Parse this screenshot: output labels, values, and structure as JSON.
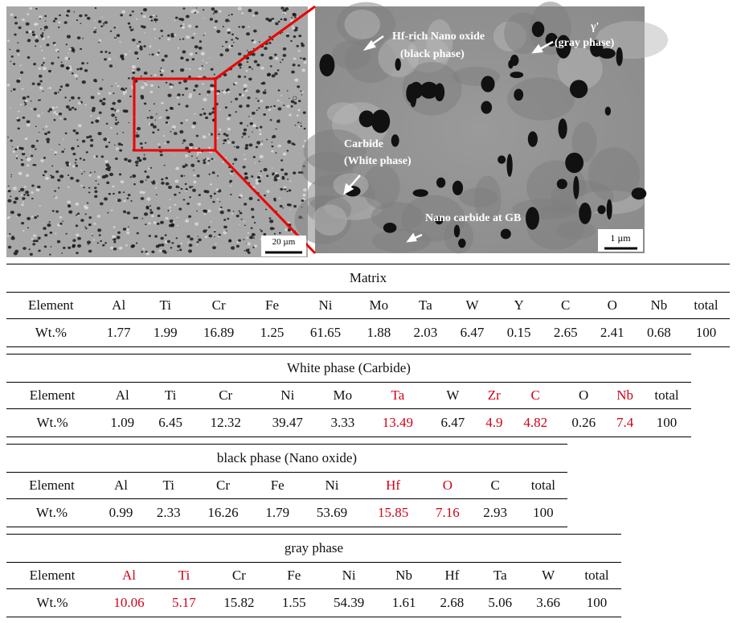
{
  "figure": {
    "left_scale": "20 µm",
    "right_scale": "1 µm",
    "labels": [
      "Hf-rich Nano oxide",
      "(black phase)",
      "γ'",
      "(gray phase)",
      "Carbide",
      "(White phase)",
      "Nano carbide at GB"
    ]
  },
  "highlight_color": "#d0021b",
  "tables": [
    {
      "title": "Matrix",
      "header": [
        "Element",
        "Al",
        "Ti",
        "Cr",
        "Fe",
        "Ni",
        "Mo",
        "Ta",
        "W",
        "Y",
        "C",
        "O",
        "Nb",
        "total"
      ],
      "values": [
        "Wt.%",
        "1.77",
        "1.99",
        "16.89",
        "1.25",
        "61.65",
        "1.88",
        "2.03",
        "6.47",
        "0.15",
        "2.65",
        "2.41",
        "0.68",
        "100"
      ],
      "red_columns": []
    },
    {
      "title": "White phase (Carbide)",
      "header": [
        "Element",
        "Al",
        "Ti",
        "Cr",
        "Ni",
        "Mo",
        "Ta",
        "W",
        "Zr",
        "C",
        "O",
        "Nb",
        "total"
      ],
      "values": [
        "Wt.%",
        "1.09",
        "6.45",
        "12.32",
        "39.47",
        "3.33",
        "13.49",
        "6.47",
        "4.9",
        "4.82",
        "0.26",
        "7.4",
        "100"
      ],
      "red_columns": [
        6,
        8,
        9,
        11
      ]
    },
    {
      "title": "black phase (Nano oxide)",
      "header": [
        "Element",
        "Al",
        "Ti",
        "Cr",
        "Fe",
        "Ni",
        "Hf",
        "O",
        "C",
        "total"
      ],
      "values": [
        "Wt.%",
        "0.99",
        "2.33",
        "16.26",
        "1.79",
        "53.69",
        "15.85",
        "7.16",
        "2.93",
        "100"
      ],
      "red_columns": [
        6,
        7
      ]
    },
    {
      "title": "gray phase",
      "header": [
        "Element",
        "Al",
        "Ti",
        "Cr",
        "Fe",
        "Ni",
        "Nb",
        "Hf",
        "Ta",
        "W",
        "total"
      ],
      "values": [
        "Wt.%",
        "10.06",
        "5.17",
        "15.82",
        "1.55",
        "54.39",
        "1.61",
        "2.68",
        "5.06",
        "3.66",
        "100"
      ],
      "red_columns": [
        1,
        2
      ]
    }
  ]
}
